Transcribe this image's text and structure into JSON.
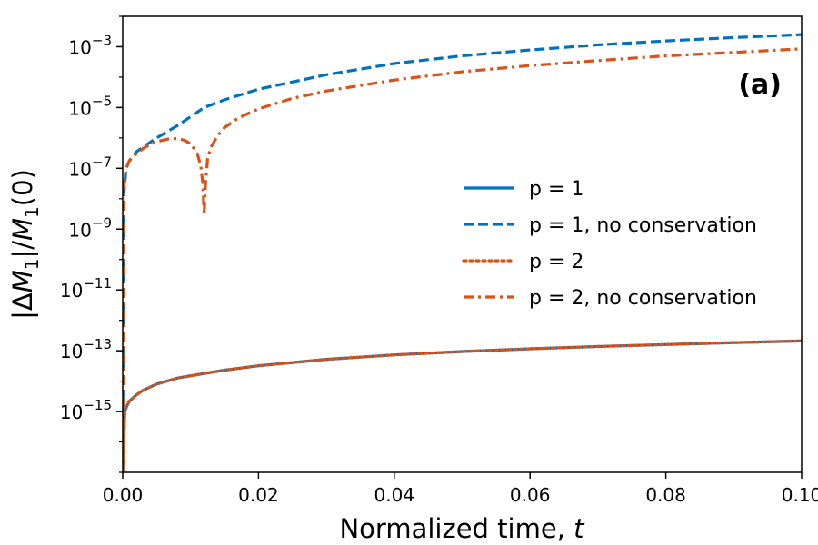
{
  "chart_data": {
    "type": "line",
    "title": "",
    "panel_label": "(a)",
    "xlabel": "Normalized time, t",
    "ylabel": "|ΔM1|/M1(0)",
    "xlim": [
      0.0,
      0.1
    ],
    "ylim_log10": [
      -17.0,
      -2.0
    ],
    "y_scale": "log",
    "x_ticks": [
      0.0,
      0.02,
      0.04,
      0.06,
      0.08,
      0.1
    ],
    "x_tick_labels": [
      "0.00",
      "0.02",
      "0.04",
      "0.06",
      "0.08",
      "0.10"
    ],
    "y_ticks_exponents": [
      -3,
      -5,
      -7,
      -9,
      -11,
      -13,
      -15
    ],
    "legend": {
      "placement": "center-right",
      "entries": [
        "p = 1",
        "p = 1, no conservation",
        "p = 2",
        "p = 2, no conservation"
      ]
    },
    "colors": {
      "blue": "#0072BD",
      "orange": "#D95319"
    },
    "series": [
      {
        "name": "p = 1",
        "color": "#0072BD",
        "style": "solid",
        "x": [
          0.0,
          0.0003,
          0.0006,
          0.001,
          0.002,
          0.003,
          0.005,
          0.008,
          0.01,
          0.015,
          0.02,
          0.03,
          0.04,
          0.05,
          0.06,
          0.07,
          0.08,
          0.09,
          0.1
        ],
        "y": [
          1e-17,
          1e-15,
          1.5e-15,
          2.2e-15,
          3.5e-15,
          5e-15,
          8e-15,
          1.25e-14,
          1.5e-14,
          2.3e-14,
          3.2e-14,
          5.2e-14,
          7.3e-14,
          9.4e-14,
          1.16e-13,
          1.38e-13,
          1.6e-13,
          1.85e-13,
          2.1e-13
        ]
      },
      {
        "name": "p = 1, no conservation",
        "color": "#0072BD",
        "style": "dashed",
        "x": [
          0.0,
          0.0001,
          0.0005,
          0.001,
          0.002,
          0.003,
          0.005,
          0.008,
          0.01,
          0.012,
          0.015,
          0.02,
          0.03,
          0.04,
          0.05,
          0.06,
          0.07,
          0.08,
          0.09,
          0.1
        ],
        "y": [
          1e-17,
          1e-08,
          1e-07,
          1.8e-07,
          3.5e-07,
          5e-07,
          1e-06,
          2.5e-06,
          5e-06,
          1e-05,
          1.8e-05,
          4e-05,
          0.00012,
          0.00028,
          0.0005,
          0.00078,
          0.00115,
          0.00155,
          0.002,
          0.0025
        ]
      },
      {
        "name": "p = 2",
        "color": "#D95319",
        "style": "dotted",
        "x": [
          0.0,
          0.0003,
          0.0006,
          0.001,
          0.002,
          0.003,
          0.005,
          0.008,
          0.01,
          0.015,
          0.02,
          0.03,
          0.04,
          0.05,
          0.06,
          0.07,
          0.08,
          0.09,
          0.1
        ],
        "y": [
          1e-17,
          1e-15,
          1.5e-15,
          2.2e-15,
          3.5e-15,
          5e-15,
          8e-15,
          1.25e-14,
          1.5e-14,
          2.3e-14,
          3.2e-14,
          5.2e-14,
          7.3e-14,
          9.4e-14,
          1.16e-13,
          1.38e-13,
          1.6e-13,
          1.85e-13,
          2.1e-13
        ]
      },
      {
        "name": "p = 2, no conservation",
        "color": "#D95319",
        "style": "dashdot",
        "x": [
          0.0,
          0.0002,
          0.0005,
          0.001,
          0.002,
          0.003,
          0.004,
          0.005,
          0.006,
          0.007,
          0.008,
          0.009,
          0.01,
          0.011,
          0.0115,
          0.0118,
          0.012,
          0.0122,
          0.0125,
          0.013,
          0.014,
          0.015,
          0.017,
          0.02,
          0.025,
          0.03,
          0.04,
          0.05,
          0.06,
          0.07,
          0.08,
          0.09,
          0.1
        ],
        "y": [
          1e-17,
          3e-08,
          1e-07,
          1.8e-07,
          3e-07,
          4.5e-07,
          6e-07,
          7.5e-07,
          8.5e-07,
          9.5e-07,
          9.5e-07,
          8.5e-07,
          6.5e-07,
          3e-07,
          1.2e-07,
          3e-08,
          3e-09,
          3e-08,
          2e-07,
          5e-07,
          1.2e-06,
          2.2e-06,
          4.5e-06,
          9e-06,
          2e-05,
          3.5e-05,
          8e-05,
          0.00015,
          0.00024,
          0.00035,
          0.0005,
          0.00065,
          0.00085
        ]
      }
    ]
  }
}
